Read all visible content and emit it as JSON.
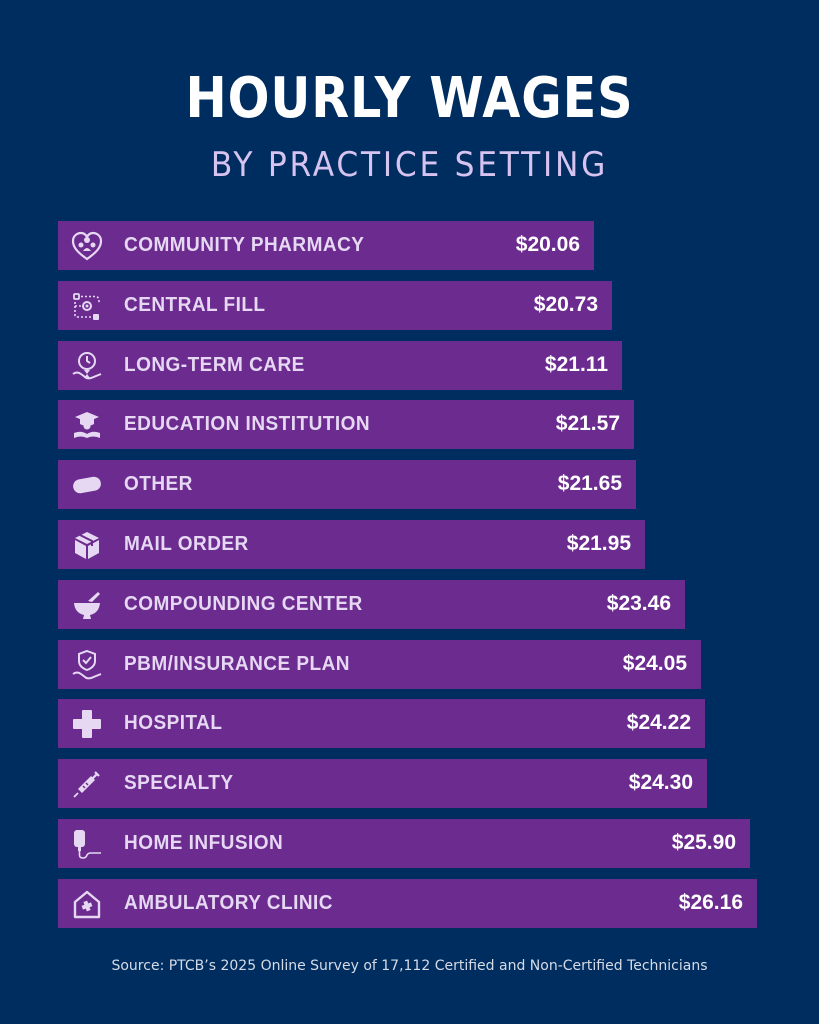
{
  "title": "HOURLY WAGES",
  "subtitle": "BY PRACTICE SETTING",
  "source": "Source: PTCB’s 2025 Online Survey of 17,112 Certified and Non-Certified Technicians",
  "colors": {
    "background": "#002d5f",
    "bar": "#6b2b8f",
    "label": "#e6d8f3",
    "value": "#ffffff",
    "icon": "#e6d8f3"
  },
  "chart_data": {
    "type": "bar",
    "orientation": "horizontal",
    "title": "HOURLY WAGES",
    "subtitle": "BY PRACTICE SETTING",
    "categories": [
      "COMMUNITY PHARMACY",
      "CENTRAL FILL",
      "LONG-TERM CARE",
      "EDUCATION INSTITUTION",
      "OTHER",
      "MAIL ORDER",
      "COMPOUNDING CENTER",
      "PBM/INSURANCE PLAN",
      "HOSPITAL",
      "SPECIALTY",
      "HOME INFUSION",
      "AMBULATORY CLINIC"
    ],
    "values": [
      20.06,
      20.73,
      21.11,
      21.57,
      21.65,
      21.95,
      23.46,
      24.05,
      24.22,
      24.3,
      25.9,
      26.16
    ],
    "value_labels": [
      "$20.06",
      "$20.73",
      "$21.11",
      "$21.57",
      "$21.65",
      "$21.95",
      "$23.46",
      "$24.05",
      "$24.22",
      "$24.30",
      "$25.90",
      "$26.16"
    ],
    "icons": [
      "heart-people-icon",
      "workflow-icon",
      "hourglass-hand-icon",
      "graduate-book-icon",
      "pill-icon",
      "box-icon",
      "mortar-pestle-icon",
      "shield-hand-icon",
      "cross-icon",
      "syringe-icon",
      "iv-bag-icon",
      "house-plus-icon"
    ]
  }
}
